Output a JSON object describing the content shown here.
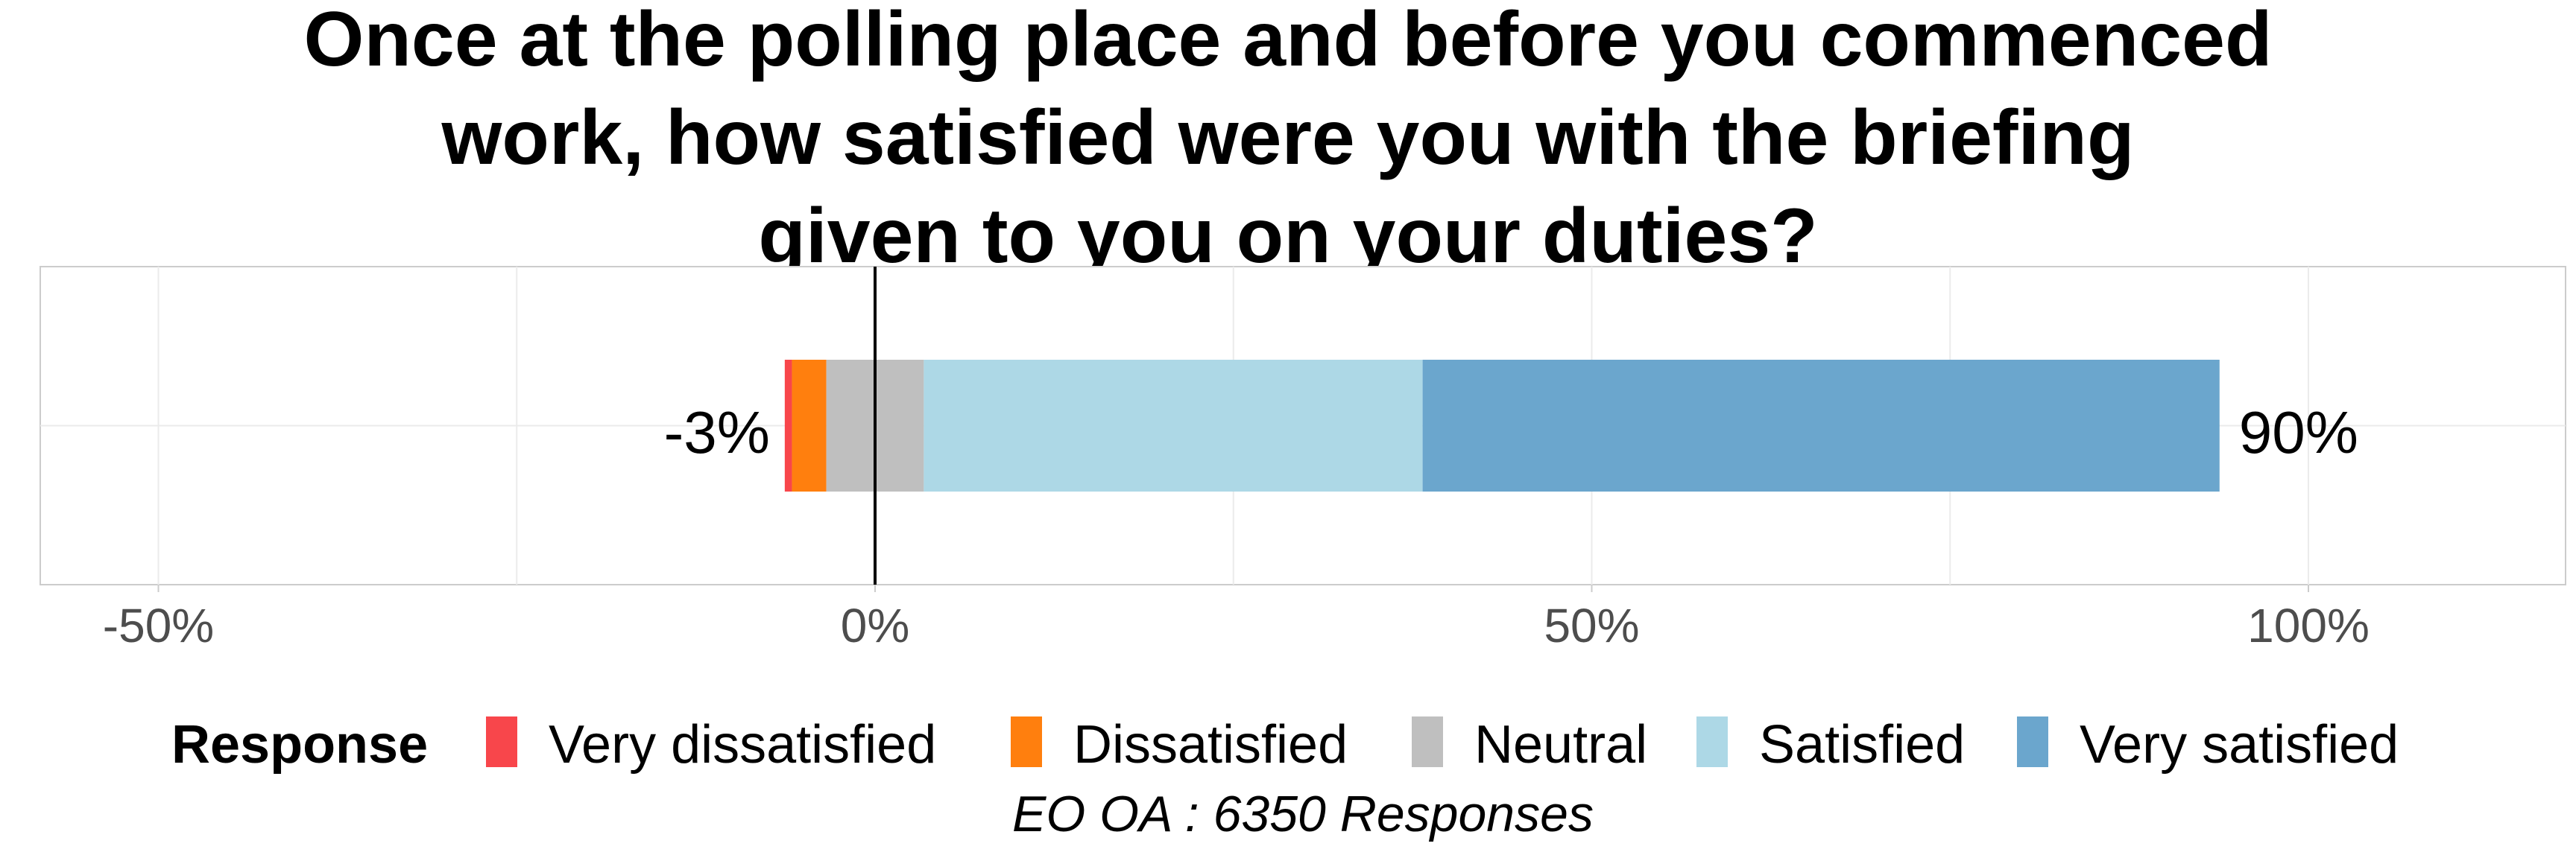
{
  "chart_data": {
    "type": "bar",
    "orientation": "horizontal",
    "stacked": true,
    "diverging": true,
    "title_lines": [
      "Once at the polling place and before you commenced",
      "work, how satisfied were you with the briefing",
      "given to you on your duties?"
    ],
    "xlim": [
      -58,
      118
    ],
    "x_ticks": [
      -50,
      0,
      50,
      100
    ],
    "x_tick_labels": [
      "-50%",
      "0%",
      "50%",
      "100%"
    ],
    "grid": true,
    "legend_position": "bottom",
    "legend_title": "Response",
    "series": [
      {
        "name": "Very dissatisfied",
        "color": "#f8464b",
        "start": -6.3,
        "end": -5.8
      },
      {
        "name": "Dissatisfied",
        "color": "#ff7f0e",
        "start": -5.8,
        "end": -3.4
      },
      {
        "name": "Neutral",
        "color": "#bfbfbf",
        "start": -3.4,
        "end": 3.4
      },
      {
        "name": "Satisfied",
        "color": "#add8e6",
        "start": 3.4,
        "end": 38.2
      },
      {
        "name": "Very satisfied",
        "color": "#6ba6cd",
        "start": 38.2,
        "end": 93.8
      }
    ],
    "negative_total_label": "-3%",
    "positive_total_label": "90%",
    "caption": "EO OA : 6350 Responses"
  }
}
